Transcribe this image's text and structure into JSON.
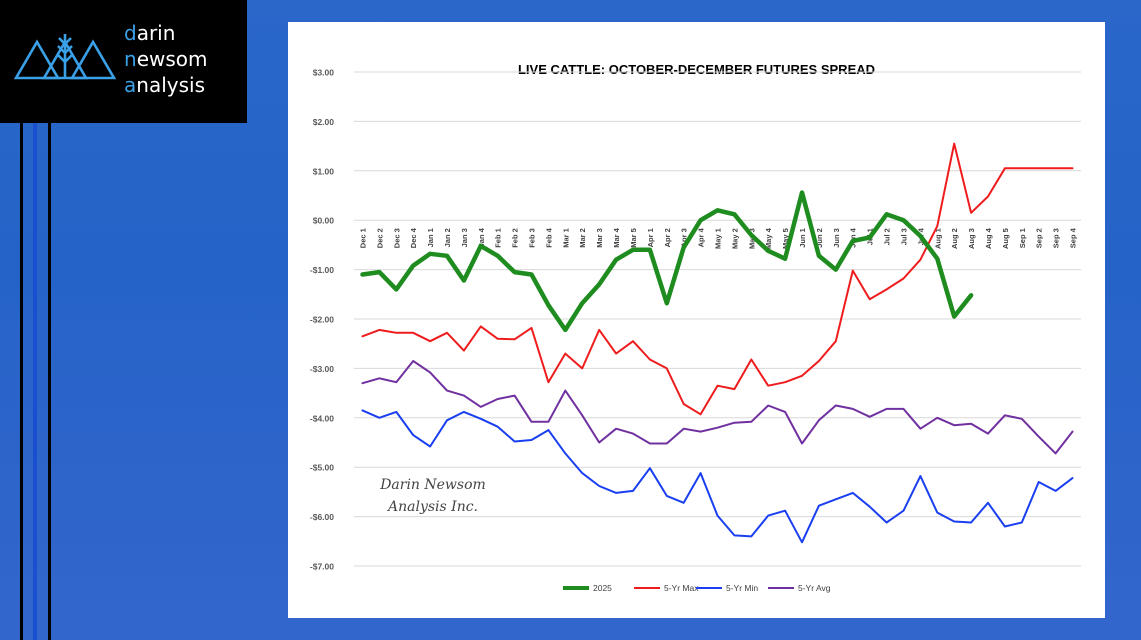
{
  "logo": {
    "lines": [
      {
        "accent": "d",
        "rest": "arin"
      },
      {
        "accent": "n",
        "rest": "ewsom"
      },
      {
        "accent": "a",
        "rest": "nalysis"
      }
    ],
    "icon": "mountains-wheat-icon",
    "accent_color": "#3aa0e8"
  },
  "watermark": {
    "line1": "Darin Newsom",
    "line2": "Analysis Inc."
  },
  "chart_data": {
    "type": "line",
    "title": "LIVE CATTLE: OCTOBER-DECEMBER FUTURES SPREAD",
    "xlabel": "",
    "ylabel": "",
    "ylim": [
      -7,
      3
    ],
    "yticks": [
      3,
      2,
      1,
      0,
      -1,
      -2,
      -3,
      -4,
      -5,
      -6,
      -7
    ],
    "ytick_labels": [
      "$3.00",
      "$2.00",
      "$1.00",
      "$0.00",
      "-$1.00",
      "-$2.00",
      "-$3.00",
      "-$4.00",
      "-$5.00",
      "-$6.00",
      "-$7.00"
    ],
    "grid": true,
    "legend": "bottom",
    "categories": [
      "Dec 1",
      "Dec 2",
      "Dec 3",
      "Dec 4",
      "Jan 1",
      "Jan 2",
      "Jan 3",
      "Jan 4",
      "Feb 1",
      "Feb 2",
      "Feb 3",
      "Feb 4",
      "Mar 1",
      "Mar 2",
      "Mar 3",
      "Mar 4",
      "Mar 5",
      "Apr 1",
      "Apr 2",
      "Apr 3",
      "Apr 4",
      "May 1",
      "May 2",
      "May 3",
      "May 4",
      "May 5",
      "Jun 1",
      "Jun 2",
      "Jun 3",
      "Jun 4",
      "Jul 1",
      "Jul 2",
      "Jul 3",
      "Jul 4",
      "Aug 1",
      "Aug 2",
      "Aug 3",
      "Aug 4",
      "Aug 5",
      "Sep 1",
      "Sep 2",
      "Sep 3",
      "Sep 4"
    ],
    "series": [
      {
        "name": "2025",
        "color": "#1e8c1e",
        "width": 4.5,
        "values": [
          -1.1,
          -1.05,
          -1.4,
          -0.92,
          -0.68,
          -0.72,
          -1.22,
          -0.52,
          -0.72,
          -1.05,
          -1.1,
          -1.72,
          -2.22,
          -1.68,
          -1.3,
          -0.8,
          -0.6,
          -0.6,
          -1.68,
          -0.55,
          0.0,
          0.2,
          0.12,
          -0.3,
          -0.62,
          -0.78,
          0.56,
          -0.72,
          -1.0,
          -0.42,
          -0.35,
          0.12,
          0.0,
          -0.32,
          -0.78,
          -1.95,
          -1.52,
          null,
          null,
          null,
          null,
          null,
          null
        ]
      },
      {
        "name": "5-Yr Max",
        "color": "#ee1c1c",
        "width": 2,
        "values": [
          -2.35,
          -2.22,
          -2.28,
          -2.28,
          -2.45,
          -2.28,
          -2.64,
          -2.15,
          -2.4,
          -2.41,
          -2.18,
          -3.28,
          -2.7,
          -3.0,
          -2.22,
          -2.7,
          -2.45,
          -2.82,
          -3.0,
          -3.72,
          -3.93,
          -3.35,
          -3.42,
          -2.82,
          -3.35,
          -3.28,
          -3.15,
          -2.85,
          -2.45,
          -1.02,
          -1.6,
          -1.4,
          -1.18,
          -0.8,
          -0.12,
          1.55,
          0.15,
          0.48,
          1.05,
          1.05,
          1.05,
          1.05,
          1.05
        ]
      },
      {
        "name": "5-Yr Min",
        "color": "#1a3ff0",
        "width": 2,
        "values": [
          -3.85,
          -4.0,
          -3.88,
          -4.35,
          -4.58,
          -4.05,
          -3.88,
          -4.02,
          -4.18,
          -4.48,
          -4.45,
          -4.25,
          -4.72,
          -5.12,
          -5.38,
          -5.52,
          -5.48,
          -5.02,
          -5.58,
          -5.72,
          -5.12,
          -5.98,
          -6.38,
          -6.4,
          -5.98,
          -5.88,
          -6.52,
          -5.78,
          -5.65,
          -5.52,
          -5.8,
          -6.12,
          -5.88,
          -5.18,
          -5.92,
          -6.1,
          -6.12,
          -5.72,
          -6.2,
          -6.12,
          -5.3,
          -5.48,
          -5.22
        ]
      },
      {
        "name": "5-Yr Avg",
        "color": "#7030a0",
        "width": 2,
        "values": [
          -3.3,
          -3.2,
          -3.28,
          -2.85,
          -3.08,
          -3.45,
          -3.55,
          -3.78,
          -3.62,
          -3.55,
          -4.08,
          -4.08,
          -3.45,
          -3.95,
          -4.5,
          -4.22,
          -4.32,
          -4.52,
          -4.52,
          -4.22,
          -4.28,
          -4.2,
          -4.1,
          -4.08,
          -3.75,
          -3.88,
          -4.52,
          -4.05,
          -3.75,
          -3.82,
          -3.98,
          -3.82,
          -3.82,
          -4.22,
          -4.0,
          -4.15,
          -4.12,
          -4.32,
          -3.95,
          -4.02,
          -4.38,
          -4.72,
          -4.28
        ]
      }
    ]
  }
}
